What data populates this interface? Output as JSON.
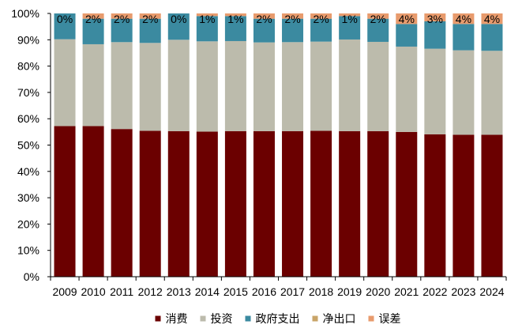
{
  "chart_data": {
    "type": "bar",
    "stacked": true,
    "categories": [
      "2009",
      "2010",
      "2011",
      "2012",
      "2013",
      "2014",
      "2015",
      "2016",
      "2017",
      "2018",
      "2019",
      "2020",
      "2021",
      "2022",
      "2023",
      "2024"
    ],
    "yticks": [
      "0%",
      "10%",
      "20%",
      "30%",
      "40%",
      "50%",
      "60%",
      "70%",
      "80%",
      "90%",
      "100%"
    ],
    "ylim": [
      0,
      100
    ],
    "grid": false,
    "legend_position": "bottom",
    "series": [
      {
        "name": "消费",
        "color": "#6B0000",
        "values": [
          57.2,
          57.2,
          56.1,
          55.4,
          55.3,
          55.1,
          55.3,
          55.3,
          55.3,
          55.4,
          55.3,
          55.3,
          55.0,
          54.1,
          53.9,
          53.9
        ]
      },
      {
        "name": "投资",
        "color": "#BCBBAC",
        "values": [
          33.0,
          31.1,
          33.0,
          33.4,
          34.7,
          34.3,
          34.2,
          33.7,
          33.8,
          33.9,
          34.8,
          33.9,
          32.4,
          32.5,
          32.1,
          31.9
        ]
      },
      {
        "name": "政府支出",
        "color": "#3B8AA0",
        "values": [
          9.8,
          9.7,
          8.9,
          9.2,
          10.0,
          9.6,
          9.5,
          9.0,
          8.9,
          8.7,
          8.9,
          8.8,
          8.6,
          10.4,
          10.0,
          10.2
        ]
      },
      {
        "name": "净出口",
        "color": "#C9A468",
        "values": [
          0,
          0,
          0,
          0,
          0,
          0,
          0,
          0,
          0,
          0,
          0,
          0,
          0,
          0,
          0,
          0
        ]
      },
      {
        "name": "误差",
        "color": "#E89B6D",
        "values": [
          0,
          2.0,
          2.0,
          2.0,
          0,
          1.0,
          1.0,
          2.0,
          2.0,
          2.0,
          1.0,
          2.0,
          4.0,
          3.0,
          4.0,
          4.0
        ]
      }
    ],
    "data_labels": [
      "0%",
      "2%",
      "2%",
      "2%",
      "0%",
      "1%",
      "1%",
      "2%",
      "2%",
      "2%",
      "1%",
      "2%",
      "4%",
      "3%",
      "4%",
      "4%"
    ]
  }
}
